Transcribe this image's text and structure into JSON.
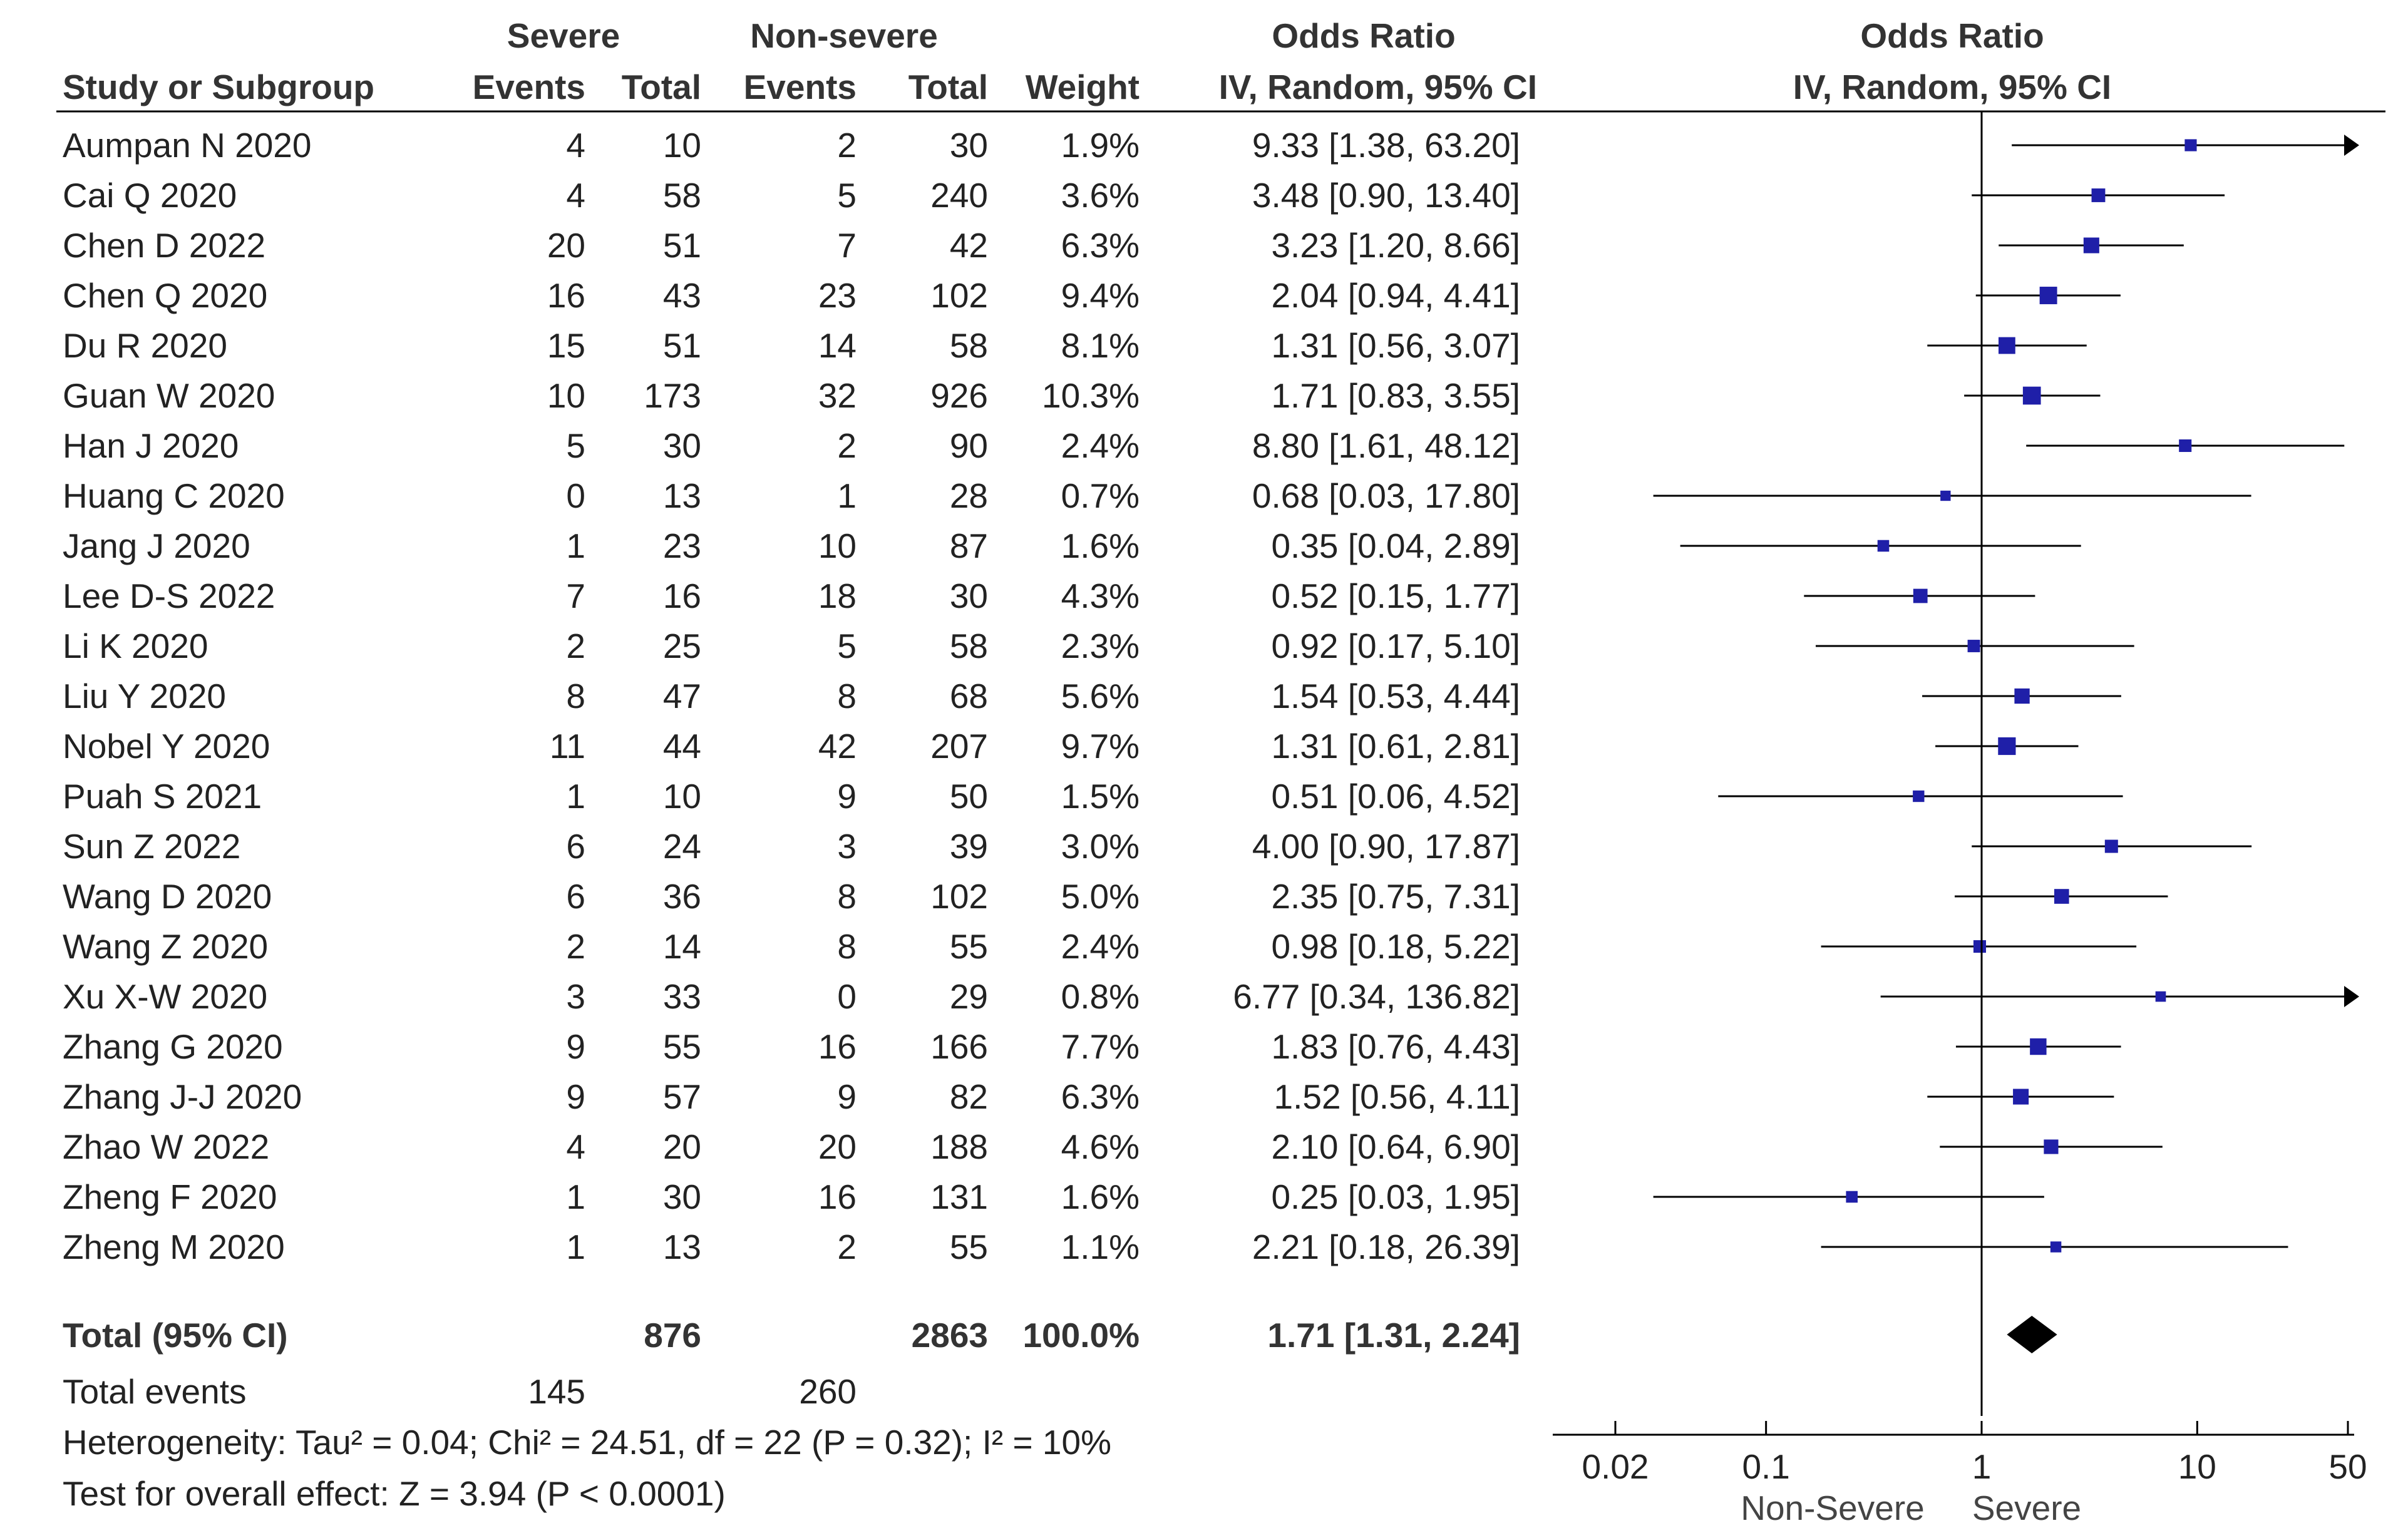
{
  "headers": {
    "study": "Study or Subgroup",
    "group1": "Severe",
    "group2": "Non-severe",
    "events": "Events",
    "total": "Total",
    "weight": "Weight",
    "or_group": "Odds Ratio",
    "or_method": "IV, Random, 95% CI",
    "plot_group": "Odds Ratio",
    "plot_method": "IV, Random, 95% CI"
  },
  "summary": {
    "label": "Total (95% CI)",
    "total1": "876",
    "total2": "2863",
    "weight": "100.0%",
    "ci_text": "1.71 [1.31, 2.24]",
    "events_label": "Total events",
    "events1": "145",
    "events2": "260",
    "heterogeneity": "Heterogeneity: Tau² = 0.04; Chi² = 24.51, df = 22 (P = 0.32); I² = 10%",
    "overall_effect": "Test for overall effect: Z = 3.94 (P < 0.0001)"
  },
  "axis": {
    "ticks": [
      "0.02",
      "0.1",
      "1",
      "10",
      "50"
    ],
    "left_label": "Non-Severe",
    "right_label": "Severe"
  },
  "colors": {
    "marker": "#1f1fa8",
    "line": "#000000"
  },
  "chart_data": {
    "type": "forest",
    "measure": "Odds Ratio",
    "method": "IV, Random, 95% CI",
    "scale": "log",
    "xlim": [
      0.02,
      50
    ],
    "null_value": 1,
    "studies": [
      {
        "name": "Aumpan N  2020",
        "e1": "4",
        "n1": "10",
        "e2": "2",
        "n2": "30",
        "weight": "1.9%",
        "ci_text": "9.33 [1.38, 63.20]",
        "or": 9.33,
        "lo": 1.38,
        "hi": 63.2,
        "w": 1.9
      },
      {
        "name": "Cai Q 2020",
        "e1": "4",
        "n1": "58",
        "e2": "5",
        "n2": "240",
        "weight": "3.6%",
        "ci_text": "3.48 [0.90, 13.40]",
        "or": 3.48,
        "lo": 0.9,
        "hi": 13.4,
        "w": 3.6
      },
      {
        "name": "Chen D 2022",
        "e1": "20",
        "n1": "51",
        "e2": "7",
        "n2": "42",
        "weight": "6.3%",
        "ci_text": "3.23 [1.20, 8.66]",
        "or": 3.23,
        "lo": 1.2,
        "hi": 8.66,
        "w": 6.3
      },
      {
        "name": "Chen Q 2020",
        "e1": "16",
        "n1": "43",
        "e2": "23",
        "n2": "102",
        "weight": "9.4%",
        "ci_text": "2.04 [0.94, 4.41]",
        "or": 2.04,
        "lo": 0.94,
        "hi": 4.41,
        "w": 9.4
      },
      {
        "name": "Du R 2020",
        "e1": "15",
        "n1": "51",
        "e2": "14",
        "n2": "58",
        "weight": "8.1%",
        "ci_text": "1.31 [0.56, 3.07]",
        "or": 1.31,
        "lo": 0.56,
        "hi": 3.07,
        "w": 8.1
      },
      {
        "name": "Guan W 2020",
        "e1": "10",
        "n1": "173",
        "e2": "32",
        "n2": "926",
        "weight": "10.3%",
        "ci_text": "1.71 [0.83, 3.55]",
        "or": 1.71,
        "lo": 0.83,
        "hi": 3.55,
        "w": 10.3
      },
      {
        "name": "Han J 2020",
        "e1": "5",
        "n1": "30",
        "e2": "2",
        "n2": "90",
        "weight": "2.4%",
        "ci_text": "8.80 [1.61, 48.12]",
        "or": 8.8,
        "lo": 1.61,
        "hi": 48.12,
        "w": 2.4
      },
      {
        "name": "Huang C 2020",
        "e1": "0",
        "n1": "13",
        "e2": "1",
        "n2": "28",
        "weight": "0.7%",
        "ci_text": "0.68 [0.03, 17.80]",
        "or": 0.68,
        "lo": 0.03,
        "hi": 17.8,
        "w": 0.7
      },
      {
        "name": "Jang J 2020",
        "e1": "1",
        "n1": "23",
        "e2": "10",
        "n2": "87",
        "weight": "1.6%",
        "ci_text": "0.35 [0.04, 2.89]",
        "or": 0.35,
        "lo": 0.04,
        "hi": 2.89,
        "w": 1.6
      },
      {
        "name": "Lee D-S 2022",
        "e1": "7",
        "n1": "16",
        "e2": "18",
        "n2": "30",
        "weight": "4.3%",
        "ci_text": "0.52 [0.15, 1.77]",
        "or": 0.52,
        "lo": 0.15,
        "hi": 1.77,
        "w": 4.3
      },
      {
        "name": "Li K 2020",
        "e1": "2",
        "n1": "25",
        "e2": "5",
        "n2": "58",
        "weight": "2.3%",
        "ci_text": "0.92 [0.17, 5.10]",
        "or": 0.92,
        "lo": 0.17,
        "hi": 5.1,
        "w": 2.3
      },
      {
        "name": "Liu Y 2020",
        "e1": "8",
        "n1": "47",
        "e2": "8",
        "n2": "68",
        "weight": "5.6%",
        "ci_text": "1.54 [0.53, 4.44]",
        "or": 1.54,
        "lo": 0.53,
        "hi": 4.44,
        "w": 5.6
      },
      {
        "name": "Nobel Y 2020",
        "e1": "11",
        "n1": "44",
        "e2": "42",
        "n2": "207",
        "weight": "9.7%",
        "ci_text": "1.31 [0.61, 2.81]",
        "or": 1.31,
        "lo": 0.61,
        "hi": 2.81,
        "w": 9.7
      },
      {
        "name": "Puah S 2021",
        "e1": "1",
        "n1": "10",
        "e2": "9",
        "n2": "50",
        "weight": "1.5%",
        "ci_text": "0.51 [0.06, 4.52]",
        "or": 0.51,
        "lo": 0.06,
        "hi": 4.52,
        "w": 1.5
      },
      {
        "name": "Sun Z 2022",
        "e1": "6",
        "n1": "24",
        "e2": "3",
        "n2": "39",
        "weight": "3.0%",
        "ci_text": "4.00 [0.90, 17.87]",
        "or": 4.0,
        "lo": 0.9,
        "hi": 17.87,
        "w": 3.0
      },
      {
        "name": "Wang D 2020",
        "e1": "6",
        "n1": "36",
        "e2": "8",
        "n2": "102",
        "weight": "5.0%",
        "ci_text": "2.35 [0.75, 7.31]",
        "or": 2.35,
        "lo": 0.75,
        "hi": 7.31,
        "w": 5.0
      },
      {
        "name": "Wang Z 2020",
        "e1": "2",
        "n1": "14",
        "e2": "8",
        "n2": "55",
        "weight": "2.4%",
        "ci_text": "0.98 [0.18, 5.22]",
        "or": 0.98,
        "lo": 0.18,
        "hi": 5.22,
        "w": 2.4
      },
      {
        "name": "Xu X-W 2020",
        "e1": "3",
        "n1": "33",
        "e2": "0",
        "n2": "29",
        "weight": "0.8%",
        "ci_text": "6.77 [0.34, 136.82]",
        "or": 6.77,
        "lo": 0.34,
        "hi": 136.82,
        "w": 0.8
      },
      {
        "name": "Zhang G 2020",
        "e1": "9",
        "n1": "55",
        "e2": "16",
        "n2": "166",
        "weight": "7.7%",
        "ci_text": "1.83 [0.76, 4.43]",
        "or": 1.83,
        "lo": 0.76,
        "hi": 4.43,
        "w": 7.7
      },
      {
        "name": "Zhang J-J 2020",
        "e1": "9",
        "n1": "57",
        "e2": "9",
        "n2": "82",
        "weight": "6.3%",
        "ci_text": "1.52 [0.56, 4.11]",
        "or": 1.52,
        "lo": 0.56,
        "hi": 4.11,
        "w": 6.3
      },
      {
        "name": "Zhao W 2022",
        "e1": "4",
        "n1": "20",
        "e2": "20",
        "n2": "188",
        "weight": "4.6%",
        "ci_text": "2.10 [0.64, 6.90]",
        "or": 2.1,
        "lo": 0.64,
        "hi": 6.9,
        "w": 4.6
      },
      {
        "name": "Zheng F 2020",
        "e1": "1",
        "n1": "30",
        "e2": "16",
        "n2": "131",
        "weight": "1.6%",
        "ci_text": "0.25 [0.03, 1.95]",
        "or": 0.25,
        "lo": 0.03,
        "hi": 1.95,
        "w": 1.6
      },
      {
        "name": "Zheng M 2020",
        "e1": "1",
        "n1": "13",
        "e2": "2",
        "n2": "55",
        "weight": "1.1%",
        "ci_text": "2.21 [0.18, 26.39]",
        "or": 2.21,
        "lo": 0.18,
        "hi": 26.39,
        "w": 1.1
      }
    ],
    "pooled": {
      "or": 1.71,
      "lo": 1.31,
      "hi": 2.24
    }
  }
}
